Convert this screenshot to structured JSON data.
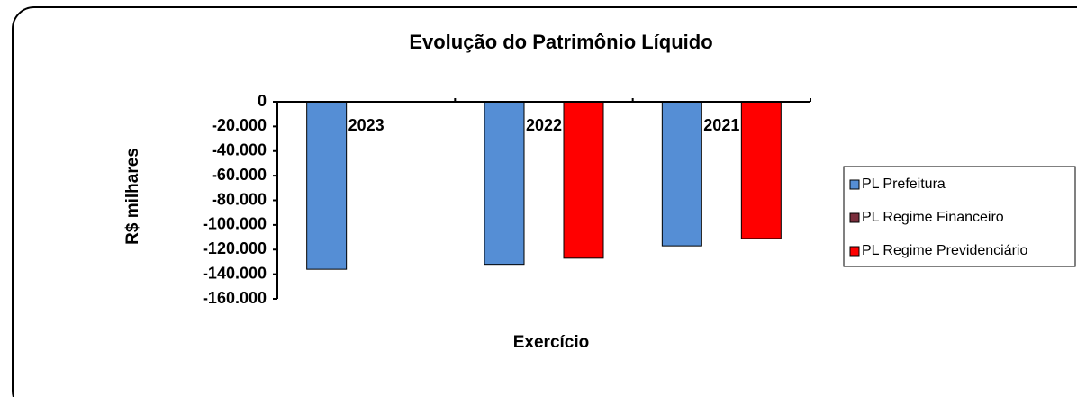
{
  "chart_data": {
    "type": "bar",
    "title": "Evolução do Patrimônio Líquido",
    "x_label": "Exercício",
    "y_label": "R$ milhares",
    "categories": [
      "2023",
      "2022",
      "2021"
    ],
    "series": [
      {
        "name": "PL Prefeitura",
        "color": "#558ed5",
        "values": [
          -136000,
          -132000,
          -117000
        ]
      },
      {
        "name": "PL Regime Financeiro",
        "color": "#7a2e3c",
        "values": [
          0,
          0,
          0
        ]
      },
      {
        "name": "PL Regime Previdenciário",
        "color": "#ff0000",
        "values": [
          0,
          -127000,
          -111000
        ]
      }
    ],
    "ylim": [
      -160000,
      0
    ],
    "yticks": [
      0,
      {
        "value": -20000,
        "label": "-20.000"
      },
      {
        "value": -40000,
        "label": "-40.000"
      },
      {
        "value": -60000,
        "label": "-60.000"
      },
      {
        "value": -80000,
        "label": "-80.000"
      },
      {
        "value": -100000,
        "label": "-100.000"
      },
      {
        "value": -120000,
        "label": "-120.000"
      },
      {
        "value": -140000,
        "label": "-140.000"
      },
      {
        "value": -160000,
        "label": "-160.000"
      }
    ],
    "legend": "right"
  }
}
